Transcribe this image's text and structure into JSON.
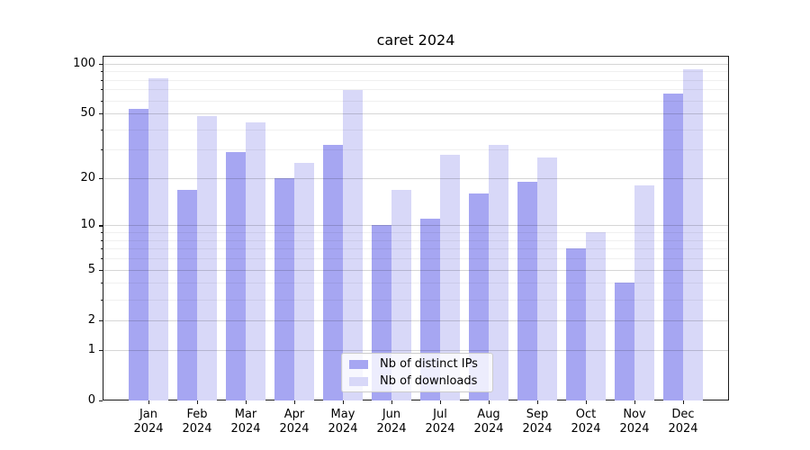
{
  "title": "caret 2024",
  "colors": {
    "bar_distinct_ips": "#a6a6f2",
    "bar_downloads": "#d8d8f8",
    "grid_major": "rgba(0,0,0,0.16)",
    "grid_minor": "rgba(0,0,0,0.06)",
    "axis": "#1a1a1a",
    "legend_border": "#cccccc"
  },
  "chart_data": {
    "type": "bar",
    "title": "caret 2024",
    "categories": [
      "Jan 2024",
      "Feb 2024",
      "Mar 2024",
      "Apr 2024",
      "May 2024",
      "Jun 2024",
      "Jul 2024",
      "Aug 2024",
      "Sep 2024",
      "Oct 2024",
      "Nov 2024",
      "Dec 2024"
    ],
    "series": [
      {
        "name": "Nb of distinct IPs",
        "color": "#a6a6f2",
        "values": [
          53,
          17,
          29,
          20,
          32,
          10,
          11,
          16,
          19,
          7,
          4,
          66
        ]
      },
      {
        "name": "Nb of downloads",
        "color": "#d8d8f8",
        "values": [
          82,
          48,
          44,
          25,
          69,
          17,
          28,
          32,
          27,
          9,
          18,
          92
        ]
      }
    ],
    "xlabel": "",
    "ylabel": "",
    "yscale": "log1p",
    "ylim": [
      0,
      111
    ],
    "yticks_major": [
      0,
      1,
      2,
      5,
      10,
      20,
      50,
      100
    ],
    "yticks_minor": [
      3,
      4,
      6,
      7,
      8,
      9,
      30,
      40,
      60,
      70,
      80,
      90
    ],
    "grid": true,
    "legend_position": "lower center"
  }
}
